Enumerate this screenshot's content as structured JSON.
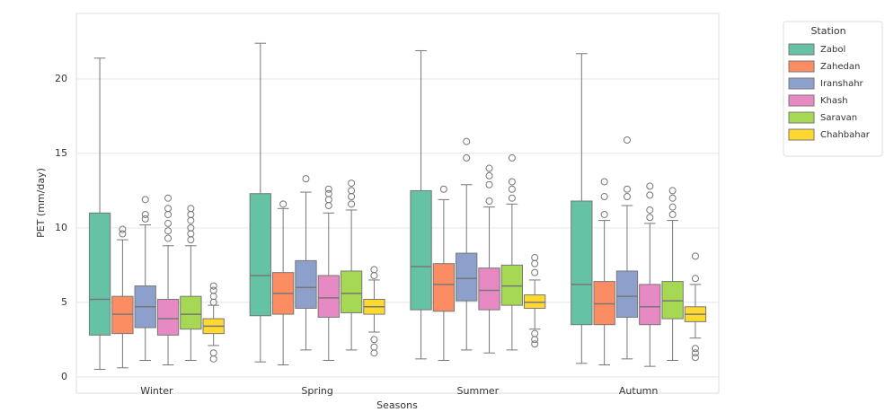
{
  "chart_data": {
    "type": "box",
    "xlabel": "Seasons",
    "ylabel": "PET (mm/day)",
    "categories": [
      "Winter",
      "Spring",
      "Summer",
      "Autumn"
    ],
    "ylim": [
      -1.1,
      24.4
    ],
    "yticks": [
      0,
      5,
      10,
      15,
      20
    ],
    "grid": true,
    "legend_title": "Station",
    "legend_position": "outside-right",
    "series": [
      {
        "name": "Zabol",
        "color": "#66c2a5",
        "boxes": [
          {
            "whislo": 0.5,
            "q1": 2.8,
            "med": 5.2,
            "q3": 11.0,
            "whishi": 21.4,
            "fliers": []
          },
          {
            "whislo": 1.0,
            "q1": 4.1,
            "med": 6.8,
            "q3": 12.3,
            "whishi": 22.4,
            "fliers": []
          },
          {
            "whislo": 1.2,
            "q1": 4.5,
            "med": 7.4,
            "q3": 12.5,
            "whishi": 21.9,
            "fliers": []
          },
          {
            "whislo": 0.9,
            "q1": 3.5,
            "med": 6.2,
            "q3": 11.8,
            "whishi": 21.7,
            "fliers": []
          }
        ]
      },
      {
        "name": "Zahedan",
        "color": "#fc8d62",
        "boxes": [
          {
            "whislo": 0.6,
            "q1": 2.9,
            "med": 4.2,
            "q3": 5.4,
            "whishi": 9.2,
            "fliers": [
              9.6,
              9.9
            ]
          },
          {
            "whislo": 0.8,
            "q1": 4.2,
            "med": 5.6,
            "q3": 7.0,
            "whishi": 11.3,
            "fliers": [
              11.6
            ]
          },
          {
            "whislo": 1.1,
            "q1": 4.4,
            "med": 6.2,
            "q3": 7.6,
            "whishi": 11.9,
            "fliers": [
              12.6
            ]
          },
          {
            "whislo": 0.8,
            "q1": 3.5,
            "med": 4.9,
            "q3": 6.4,
            "whishi": 10.5,
            "fliers": [
              10.9,
              12.1,
              13.1
            ]
          }
        ]
      },
      {
        "name": "Iranshahr",
        "color": "#8da0cb",
        "boxes": [
          {
            "whislo": 1.1,
            "q1": 3.3,
            "med": 4.7,
            "q3": 6.1,
            "whishi": 10.2,
            "fliers": [
              10.6,
              10.9,
              11.9
            ]
          },
          {
            "whislo": 1.8,
            "q1": 4.6,
            "med": 6.0,
            "q3": 7.8,
            "whishi": 12.4,
            "fliers": [
              13.3
            ]
          },
          {
            "whislo": 1.8,
            "q1": 5.1,
            "med": 6.6,
            "q3": 8.3,
            "whishi": 12.9,
            "fliers": [
              14.7,
              15.8
            ]
          },
          {
            "whislo": 1.2,
            "q1": 4.0,
            "med": 5.4,
            "q3": 7.1,
            "whishi": 11.5,
            "fliers": [
              12.1,
              12.6,
              15.9
            ]
          }
        ]
      },
      {
        "name": "Khash",
        "color": "#e78ac3",
        "boxes": [
          {
            "whislo": 0.8,
            "q1": 2.8,
            "med": 3.9,
            "q3": 5.2,
            "whishi": 8.8,
            "fliers": [
              9.3,
              9.8,
              10.3,
              10.9,
              11.3,
              12.0
            ]
          },
          {
            "whislo": 1.1,
            "q1": 4.0,
            "med": 5.3,
            "q3": 6.8,
            "whishi": 11.0,
            "fliers": [
              11.5,
              11.9,
              12.3,
              12.6
            ]
          },
          {
            "whislo": 1.6,
            "q1": 4.5,
            "med": 5.8,
            "q3": 7.3,
            "whishi": 11.4,
            "fliers": [
              11.8,
              12.9,
              13.5,
              14.0
            ]
          },
          {
            "whislo": 0.7,
            "q1": 3.5,
            "med": 4.7,
            "q3": 6.2,
            "whishi": 10.3,
            "fliers": [
              10.7,
              11.2,
              12.2,
              12.8
            ]
          }
        ]
      },
      {
        "name": "Saravan",
        "color": "#a6d854",
        "boxes": [
          {
            "whislo": 1.1,
            "q1": 3.2,
            "med": 4.2,
            "q3": 5.4,
            "whishi": 8.8,
            "fliers": [
              9.2,
              9.6,
              10.0,
              10.5,
              10.9,
              11.3
            ]
          },
          {
            "whislo": 1.8,
            "q1": 4.3,
            "med": 5.6,
            "q3": 7.1,
            "whishi": 11.2,
            "fliers": [
              11.6,
              12.1,
              12.5,
              13.0
            ]
          },
          {
            "whislo": 1.8,
            "q1": 4.8,
            "med": 6.1,
            "q3": 7.5,
            "whishi": 11.6,
            "fliers": [
              12.0,
              12.6,
              13.1,
              14.7
            ]
          },
          {
            "whislo": 1.1,
            "q1": 3.9,
            "med": 5.1,
            "q3": 6.4,
            "whishi": 10.5,
            "fliers": [
              10.9,
              11.4,
              12.0,
              12.5
            ]
          }
        ]
      },
      {
        "name": "Chahbahar",
        "color": "#ffd92f",
        "boxes": [
          {
            "whislo": 2.1,
            "q1": 2.9,
            "med": 3.4,
            "q3": 3.9,
            "whishi": 4.8,
            "fliers": [
              5.0,
              5.4,
              5.8,
              6.1,
              1.6,
              1.2
            ]
          },
          {
            "whislo": 3.0,
            "q1": 4.2,
            "med": 4.7,
            "q3": 5.2,
            "whishi": 6.5,
            "fliers": [
              6.8,
              7.2,
              2.5,
              2.0,
              1.6
            ]
          },
          {
            "whislo": 3.2,
            "q1": 4.6,
            "med": 5.0,
            "q3": 5.5,
            "whishi": 6.5,
            "fliers": [
              7.0,
              7.6,
              8.0,
              2.9,
              2.5,
              2.2
            ]
          },
          {
            "whislo": 2.6,
            "q1": 3.7,
            "med": 4.2,
            "q3": 4.7,
            "whishi": 6.2,
            "fliers": [
              6.6,
              8.1,
              1.9,
              1.6,
              1.3
            ]
          }
        ]
      }
    ]
  }
}
